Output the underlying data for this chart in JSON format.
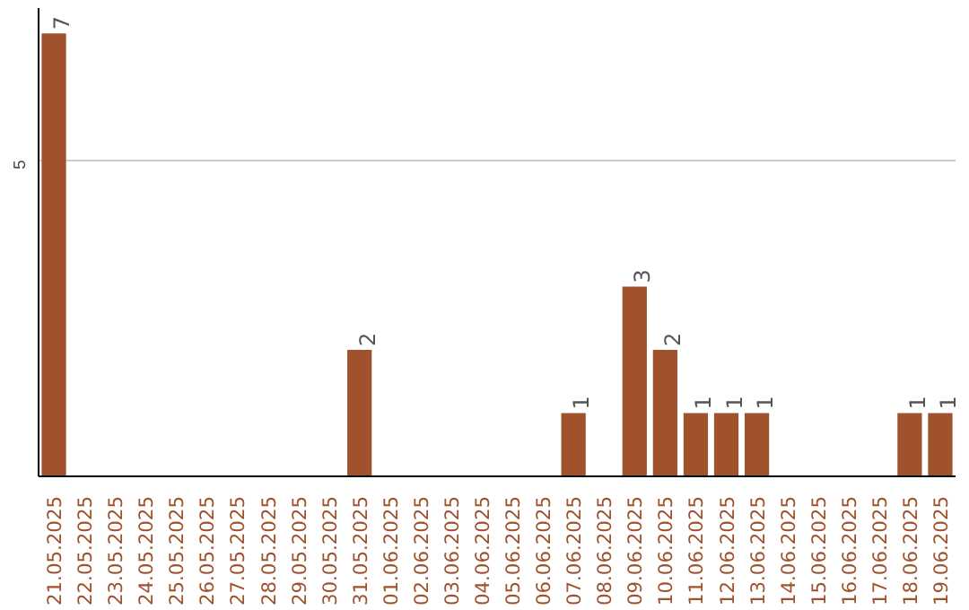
{
  "chart_data": {
    "type": "bar",
    "categories": [
      "21.05.2025",
      "22.05.2025",
      "23.05.2025",
      "24.05.2025",
      "25.05.2025",
      "26.05.2025",
      "27.05.2025",
      "28.05.2025",
      "29.05.2025",
      "30.05.2025",
      "31.05.2025",
      "01.06.2025",
      "02.06.2025",
      "03.06.2025",
      "04.06.2025",
      "05.06.2025",
      "06.06.2025",
      "07.06.2025",
      "08.06.2025",
      "09.06.2025",
      "10.06.2025",
      "11.06.2025",
      "12.06.2025",
      "13.06.2025",
      "14.06.2025",
      "15.06.2025",
      "16.06.2025",
      "17.06.2025",
      "18.06.2025",
      "19.06.2025"
    ],
    "values": [
      7,
      0,
      0,
      0,
      0,
      0,
      0,
      0,
      0,
      0,
      2,
      0,
      0,
      0,
      0,
      0,
      0,
      1,
      0,
      3,
      2,
      1,
      1,
      1,
      0,
      0,
      0,
      0,
      1,
      1
    ],
    "value_labels": [
      "7",
      null,
      null,
      null,
      null,
      null,
      null,
      null,
      null,
      null,
      "2",
      null,
      null,
      null,
      null,
      null,
      null,
      "1",
      null,
      "3",
      "2",
      "1",
      "1",
      "1",
      null,
      null,
      null,
      null,
      "1",
      "1"
    ],
    "color": "#a0522d",
    "ylim": [
      0,
      7.4
    ],
    "yticks": [
      5
    ],
    "grid": "y"
  }
}
